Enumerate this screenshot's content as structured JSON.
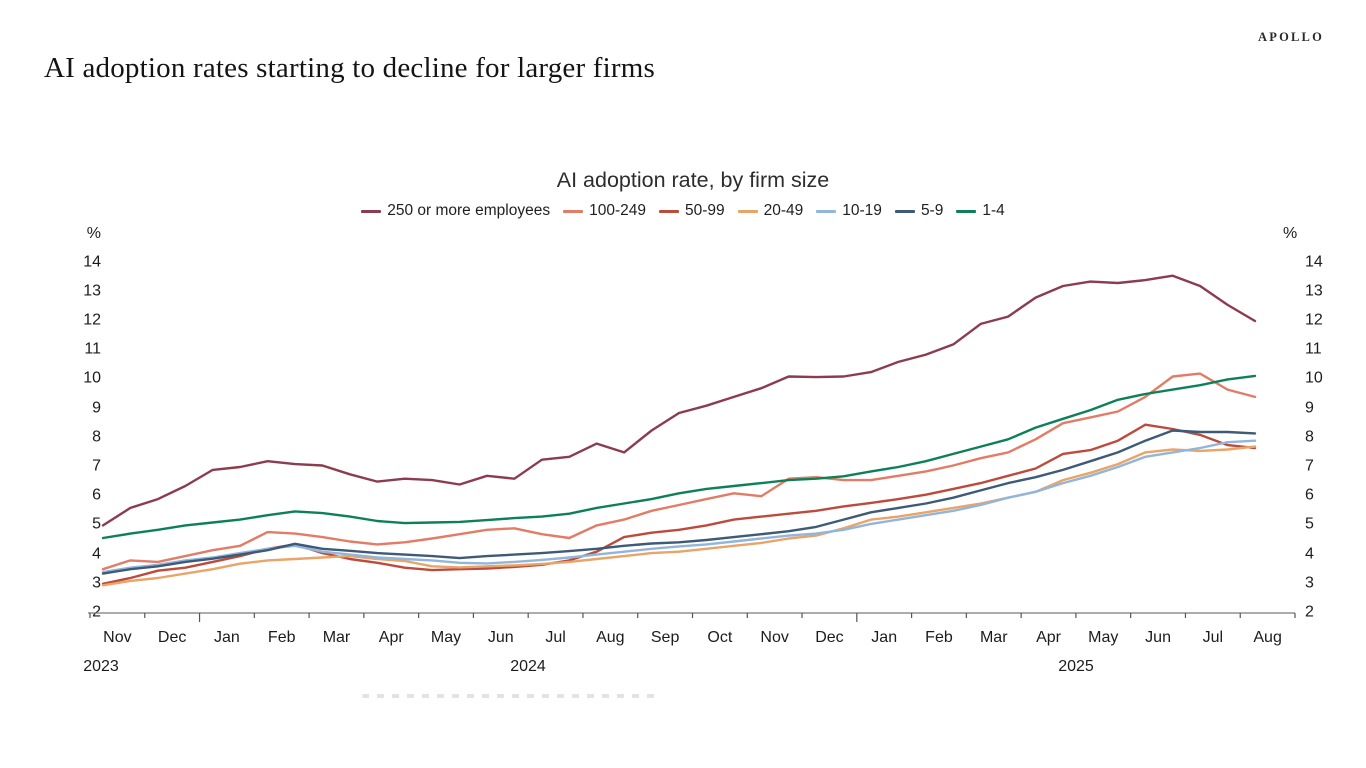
{
  "page": {
    "brand": "APOLLO",
    "headline": "AI adoption rates starting to decline for larger firms"
  },
  "chart": {
    "title": "AI adoption rate, by firm size",
    "y_unit_left": "%",
    "y_unit_right": "%",
    "y_ticks": [
      2,
      3,
      4,
      5,
      6,
      7,
      8,
      9,
      10,
      11,
      12,
      13,
      14
    ],
    "x_months": [
      "Nov",
      "Dec",
      "Jan",
      "Feb",
      "Mar",
      "Apr",
      "May",
      "Jun",
      "Jul",
      "Aug",
      "Sep",
      "Oct",
      "Nov",
      "Dec",
      "Jan",
      "Feb",
      "Mar",
      "Apr",
      "May",
      "Jun",
      "Jul",
      "Aug"
    ],
    "x_years": [
      "2023",
      "2024",
      "2025"
    ]
  },
  "chart_data": {
    "type": "line",
    "title": "AI adoption rate, by firm size",
    "ylabel": "%",
    "ylim": [
      2,
      14
    ],
    "x_range": "Nov 2023 to late Jul 2025, biweekly survey waves",
    "grid": false,
    "legend_position": "top-center",
    "series": [
      {
        "name": "250 or more employees",
        "color": "#8b3c4f",
        "values": [
          5.0,
          5.6,
          5.9,
          6.35,
          6.9,
          7.0,
          7.2,
          7.1,
          7.05,
          6.75,
          6.5,
          6.6,
          6.55,
          6.4,
          6.7,
          6.6,
          7.25,
          7.35,
          7.8,
          7.5,
          8.25,
          8.85,
          9.1,
          9.4,
          9.7,
          10.1,
          10.08,
          10.1,
          10.25,
          10.6,
          10.85,
          11.2,
          11.9,
          12.15,
          12.8,
          13.2,
          13.35,
          13.3,
          13.4,
          13.55,
          13.2,
          12.55,
          12.0
        ]
      },
      {
        "name": "100-249",
        "color": "#e27c66",
        "values": [
          3.5,
          3.8,
          3.75,
          3.95,
          4.15,
          4.3,
          4.77,
          4.72,
          4.6,
          4.45,
          4.35,
          4.42,
          4.55,
          4.7,
          4.85,
          4.9,
          4.7,
          4.57,
          5.0,
          5.2,
          5.5,
          5.7,
          5.9,
          6.1,
          6.0,
          6.6,
          6.65,
          6.55,
          6.55,
          6.7,
          6.85,
          7.05,
          7.3,
          7.5,
          7.95,
          8.5,
          8.7,
          8.9,
          9.4,
          10.1,
          10.2,
          9.65,
          9.4
        ]
      },
      {
        "name": "50-99",
        "color": "#bc4b3c",
        "values": [
          3.0,
          3.2,
          3.45,
          3.55,
          3.75,
          3.95,
          4.2,
          4.35,
          4.05,
          3.85,
          3.72,
          3.55,
          3.47,
          3.5,
          3.52,
          3.58,
          3.65,
          3.8,
          4.1,
          4.6,
          4.75,
          4.85,
          5.0,
          5.2,
          5.3,
          5.4,
          5.5,
          5.65,
          5.77,
          5.9,
          6.05,
          6.25,
          6.45,
          6.7,
          6.95,
          7.45,
          7.58,
          7.9,
          8.45,
          8.3,
          8.1,
          7.75,
          7.65
        ]
      },
      {
        "name": "20-49",
        "color": "#e9a468",
        "values": [
          2.95,
          3.1,
          3.2,
          3.35,
          3.5,
          3.69,
          3.8,
          3.85,
          3.9,
          3.95,
          3.85,
          3.78,
          3.6,
          3.56,
          3.6,
          3.63,
          3.68,
          3.75,
          3.85,
          3.95,
          4.05,
          4.1,
          4.2,
          4.3,
          4.4,
          4.55,
          4.65,
          4.9,
          5.2,
          5.3,
          5.45,
          5.6,
          5.75,
          5.95,
          6.15,
          6.55,
          6.8,
          7.1,
          7.5,
          7.6,
          7.55,
          7.6,
          7.7
        ]
      },
      {
        "name": "10-19",
        "color": "#92b5dc",
        "values": [
          3.4,
          3.55,
          3.65,
          3.8,
          3.9,
          4.05,
          4.2,
          4.3,
          4.1,
          4.0,
          3.9,
          3.85,
          3.8,
          3.72,
          3.7,
          3.75,
          3.82,
          3.9,
          4.0,
          4.1,
          4.2,
          4.28,
          4.35,
          4.45,
          4.55,
          4.65,
          4.72,
          4.85,
          5.05,
          5.2,
          5.35,
          5.5,
          5.7,
          5.95,
          6.15,
          6.45,
          6.7,
          7.0,
          7.35,
          7.5,
          7.65,
          7.85,
          7.9
        ]
      },
      {
        "name": "5-9",
        "color": "#3d5a77",
        "values": [
          3.35,
          3.5,
          3.6,
          3.75,
          3.86,
          4.0,
          4.15,
          4.37,
          4.2,
          4.13,
          4.05,
          4.0,
          3.95,
          3.88,
          3.95,
          4.0,
          4.05,
          4.12,
          4.2,
          4.3,
          4.38,
          4.42,
          4.5,
          4.6,
          4.7,
          4.8,
          4.95,
          5.2,
          5.45,
          5.6,
          5.75,
          5.95,
          6.2,
          6.45,
          6.65,
          6.9,
          7.2,
          7.5,
          7.9,
          8.25,
          8.2,
          8.2,
          8.15
        ]
      },
      {
        "name": "1-4",
        "color": "#0e8059",
        "values": [
          4.57,
          4.72,
          4.85,
          5.0,
          5.1,
          5.2,
          5.35,
          5.48,
          5.42,
          5.3,
          5.15,
          5.08,
          5.1,
          5.12,
          5.18,
          5.25,
          5.3,
          5.4,
          5.6,
          5.75,
          5.9,
          6.1,
          6.25,
          6.35,
          6.45,
          6.55,
          6.6,
          6.68,
          6.85,
          7.0,
          7.2,
          7.45,
          7.7,
          7.95,
          8.35,
          8.65,
          8.95,
          9.3,
          9.5,
          9.65,
          9.8,
          10.0,
          10.12
        ]
      }
    ]
  }
}
